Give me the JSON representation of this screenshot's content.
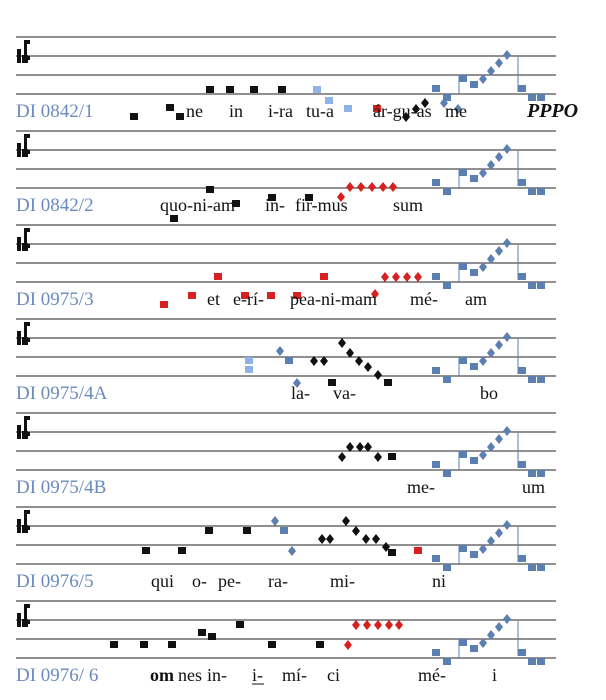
{
  "systems": [
    {
      "label": "DI 0842/1",
      "syllables": [
        "ne",
        "in",
        "i-ra",
        "tu-a",
        "ár-gu-as",
        "me"
      ],
      "mark": "PPPO"
    },
    {
      "label": "DI 0842/2",
      "syllables": [
        "quo-ni-am",
        "in-",
        "fir-mus",
        "sum"
      ]
    },
    {
      "label": "DI 0975/3",
      "syllables": [
        "et",
        "e-rí-",
        "pe",
        "a-ni-mam",
        "mé-",
        "am"
      ]
    },
    {
      "label": "DI 0975/4A",
      "syllables": [
        "la-",
        "va-",
        "bo"
      ]
    },
    {
      "label": "DI 0975/4B",
      "syllables": [
        "me-",
        "um"
      ]
    },
    {
      "label": "DI 0976/5",
      "syllables": [
        "qui",
        "o-",
        "pe-",
        "ra-",
        "mi-",
        "ni"
      ]
    },
    {
      "label": "DI 0976/ 6",
      "syllables": [
        "om",
        "nes",
        "in-",
        "i-",
        "mí-",
        "ci",
        "mé-",
        "i"
      ]
    }
  ]
}
